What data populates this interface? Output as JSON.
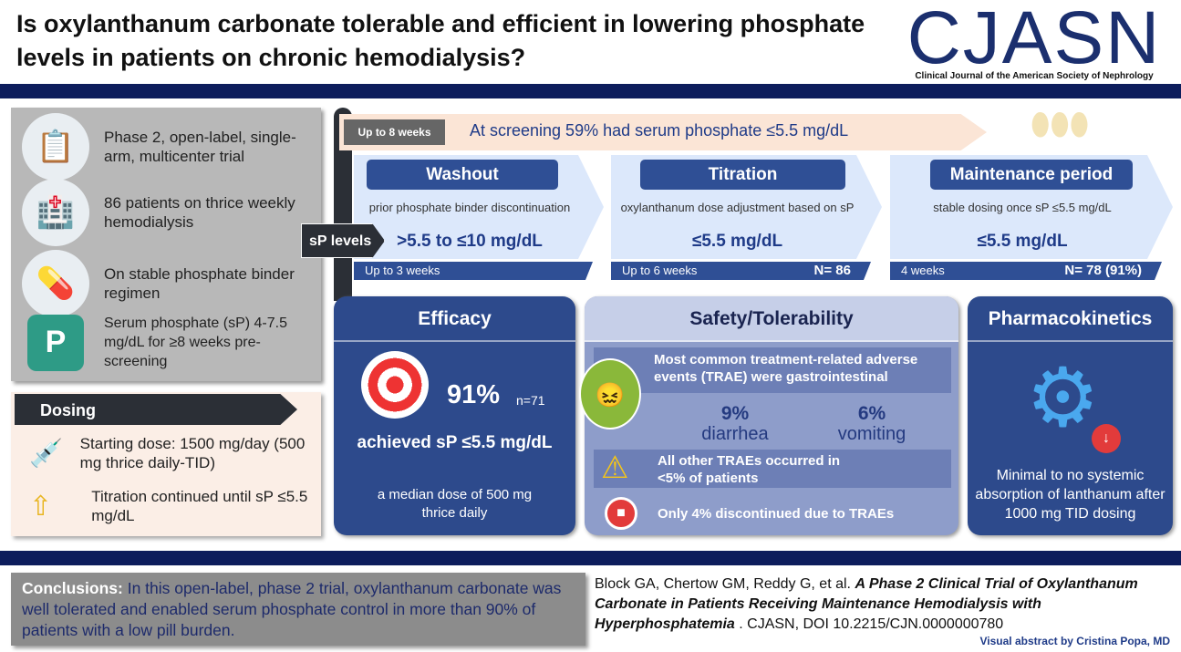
{
  "title": "Is oxylanthanum carbonate tolerable and efficient in lowering phosphate levels in patients on chronic hemodialysis?",
  "logo": {
    "name": "CJASN",
    "subtitle": "Clinical Journal of the American Society of Nephrology"
  },
  "study": {
    "items": [
      {
        "icon": "clipboard-pill-icon",
        "text": "Phase 2, open-label, single-arm, multicenter trial"
      },
      {
        "icon": "dialysis-machine-icon",
        "text": "86 patients on thrice weekly hemodialysis"
      },
      {
        "icon": "pill-bottle-icon",
        "text": "On stable phosphate binder regimen"
      },
      {
        "icon": "phosphorus-element-icon",
        "text": "Serum phosphate (sP) 4-7.5 mg/dL for ≥8 weeks pre-screening"
      }
    ]
  },
  "dosing": {
    "title": "Dosing",
    "items": [
      {
        "icon": "dropper-pill-icon",
        "text": "Starting dose: 1500 mg/day (500 mg thrice daily-TID)"
      },
      {
        "icon": "up-arrow-icon",
        "text": "Titration continued until sP ≤5.5 mg/dL"
      }
    ]
  },
  "timeline": {
    "screening_duration": "Up to 8 weeks",
    "screening_text": "At screening 59% had serum phosphate ≤5.5 mg/dL",
    "sp_label": "sP levels",
    "phases": [
      {
        "title": "Washout",
        "desc": "prior phosphate binder discontinuation",
        "sp": ">5.5 to ≤10 mg/dL",
        "duration": "Up to 3 weeks",
        "n": ""
      },
      {
        "title": "Titration",
        "desc": "oxylanthanum dose adjustment based on sP",
        "sp": "≤5.5 mg/dL",
        "duration": "Up to 6 weeks",
        "n": "N= 86"
      },
      {
        "title": "Maintenance period",
        "desc": "stable dosing once sP ≤5.5 mg/dL",
        "sp": "≤5.5 mg/dL",
        "duration": "4 weeks",
        "n": "N= 78 (91%)"
      }
    ]
  },
  "efficacy": {
    "title": "Efficacy",
    "percent": "91%",
    "n": "n=71",
    "result": "achieved sP ≤5.5 mg/dL",
    "note": "a median dose of 500 mg thrice daily"
  },
  "safety": {
    "title": "Safety/Tolerability",
    "common": "Most common treatment-related adverse events (TRAE) were gastrointestinal",
    "stats": [
      {
        "value": "9%",
        "label": "diarrhea"
      },
      {
        "value": "6%",
        "label": "vomiting"
      }
    ],
    "other": "All other TRAEs occurred in <5% of patients",
    "discontinued": "Only 4%  discontinued due to TRAEs"
  },
  "pk": {
    "title": "Pharmacokinetics",
    "text": "Minimal to no systemic absorption of lanthanum after 1000 mg TID dosing"
  },
  "conclusions": {
    "label": "Conclusions:",
    "text": " In this open-label, phase 2 trial, oxylanthanum carbonate was well tolerated and enabled serum phosphate control in more than 90% of patients with a low pill burden."
  },
  "citation": {
    "authors": "Block GA, Chertow GM, Reddy G, et al. ",
    "title": "A Phase 2 Clinical Trial of Oxylanthanum Carbonate in Patients Receiving Maintenance Hemodialysis with Hyperphosphatemia",
    "rest": " . CJASN, DOI 10.2215/CJN.0000000780"
  },
  "credit": "Visual abstract by Cristina Popa, MD",
  "colors": {
    "navy": "#0d1d5c",
    "card": "#2d4a8c",
    "safety": "#8e9dca",
    "phase": "#dce8fb"
  }
}
